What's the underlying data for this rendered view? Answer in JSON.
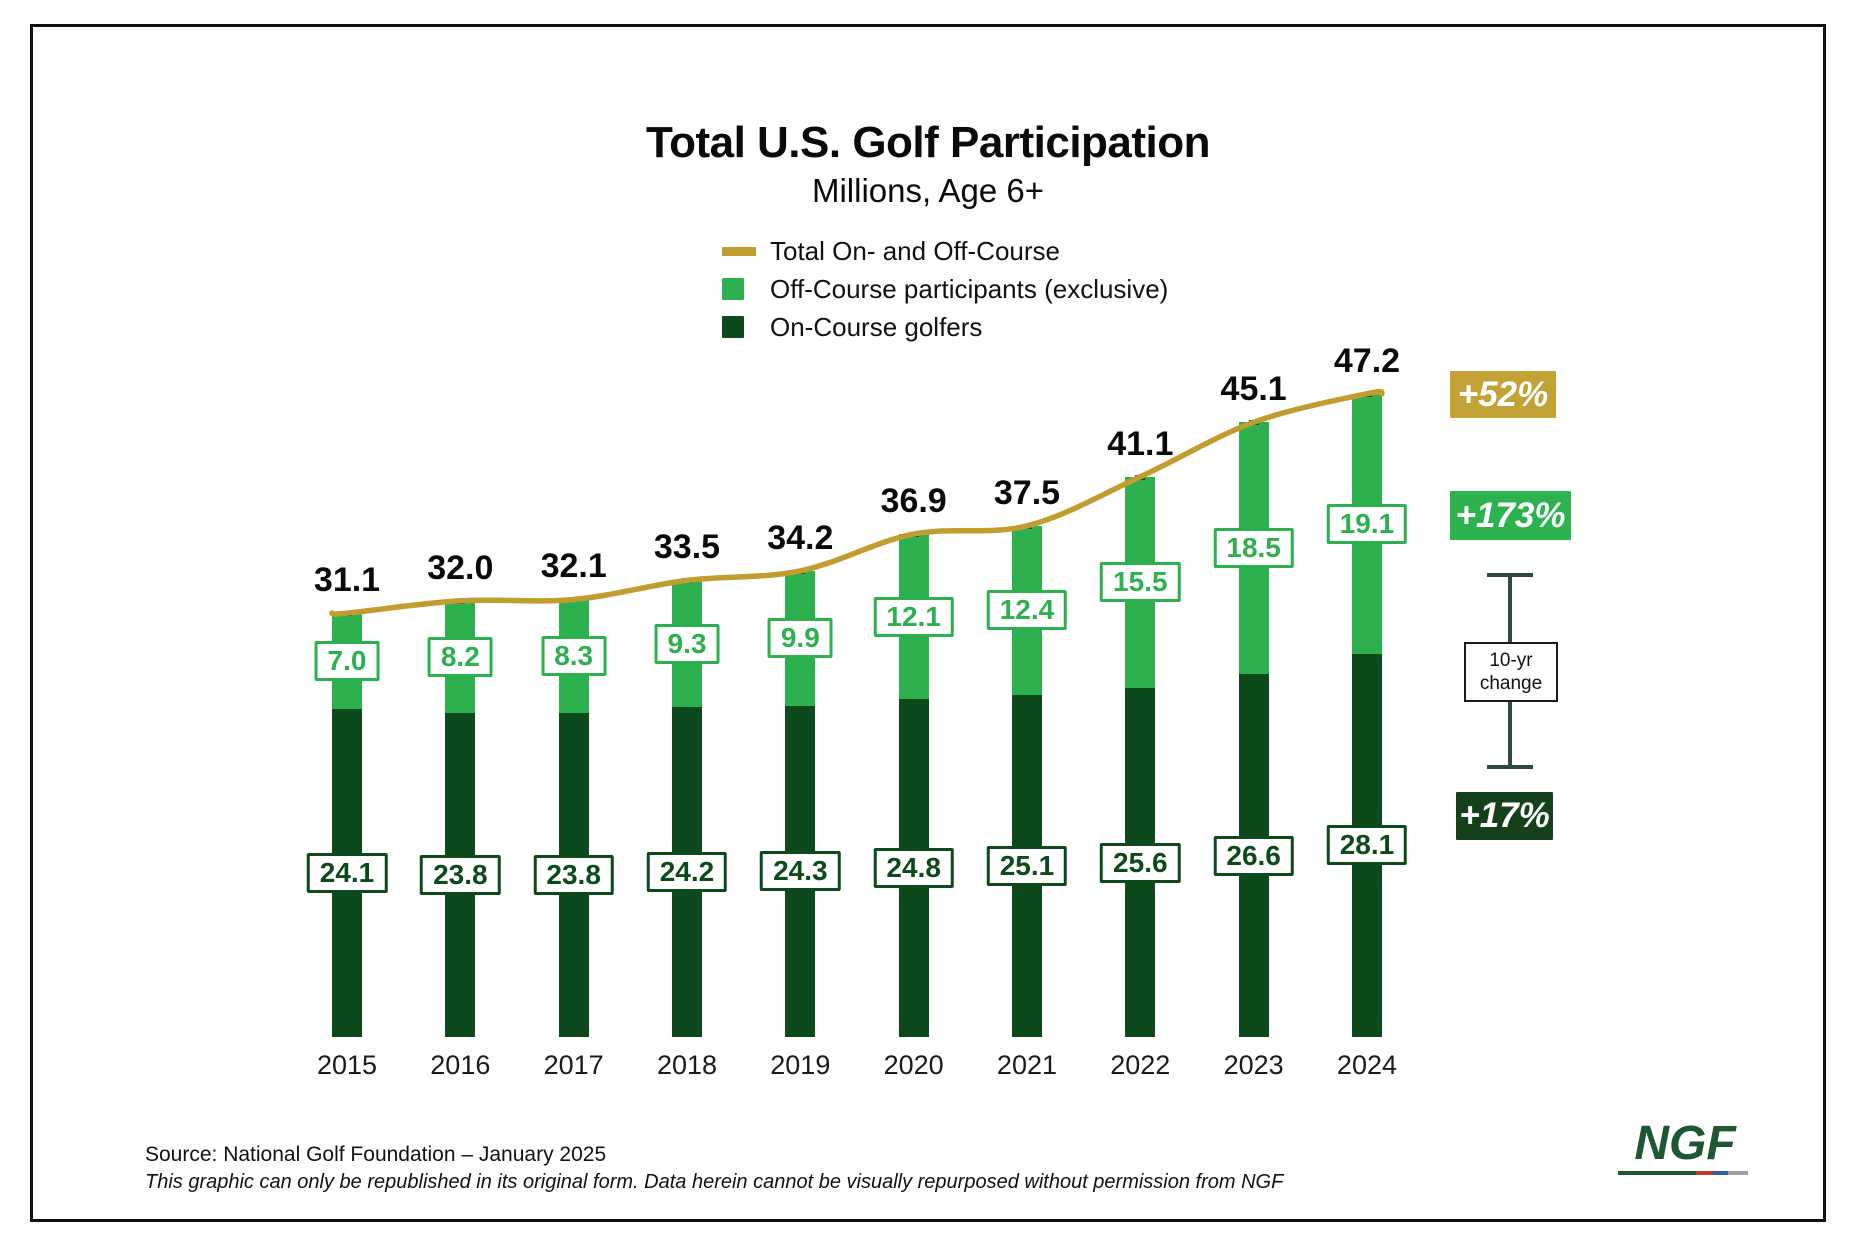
{
  "title": "Total U.S. Golf Participation",
  "subtitle": "Millions, Age 6+",
  "legend": {
    "items": [
      {
        "label": "Total On- and Off-Course",
        "swatch": "line-swatch",
        "color": "#C09D2E"
      },
      {
        "label": "Off-Course participants (exclusive)",
        "swatch": "square-swatch",
        "color": "#2DB04E"
      },
      {
        "label": "On-Course golfers",
        "swatch": "square-swatch",
        "color": "#0C4A1C"
      }
    ]
  },
  "chart_data": {
    "type": "bar",
    "stacked": true,
    "grid": false,
    "legend_position": "top",
    "categories": [
      "2015",
      "2016",
      "2017",
      "2018",
      "2019",
      "2020",
      "2021",
      "2022",
      "2023",
      "2024"
    ],
    "series": [
      {
        "name": "On-Course golfers",
        "color": "#0C4A1C",
        "values": [
          24.1,
          23.8,
          23.8,
          24.2,
          24.3,
          24.8,
          25.1,
          25.6,
          26.6,
          28.1
        ]
      },
      {
        "name": "Off-Course participants (exclusive)",
        "color": "#2DB04E",
        "values": [
          7.0,
          8.2,
          8.3,
          9.3,
          9.9,
          12.1,
          12.4,
          15.5,
          18.5,
          19.1
        ]
      }
    ],
    "line_series": {
      "name": "Total On- and Off-Course",
      "color": "#C09D2E",
      "values": [
        31.1,
        32.0,
        32.1,
        33.5,
        34.2,
        36.9,
        37.5,
        41.1,
        45.1,
        47.2
      ]
    },
    "title": "Total U.S. Golf Participation",
    "xlabel": "",
    "ylabel": "Millions, Age 6+",
    "ylim": [
      0,
      50
    ]
  },
  "annotations": {
    "total_change": "+52%",
    "off_course_change": "+173%",
    "on_course_change": "+17%",
    "bracket_label_line1": "10-yr",
    "bracket_label_line2": "change"
  },
  "colors": {
    "total_line": "#C09D2E",
    "off_course": "#2DB04E",
    "on_course": "#0C4A1C",
    "gold_badge": "#C2A135",
    "green_badge": "#2CB34F",
    "dark_green_badge": "#14401A",
    "bracket": "#2E4A39",
    "bar_tick": "#24402A",
    "logo_green": "#1D5733",
    "logo_underline_segments": [
      "#1D5733",
      "#C0392B",
      "#2B5FA3",
      "#9AA0A6"
    ]
  },
  "footer": {
    "source": "Source: National Golf Foundation – January 2025",
    "disclaimer": "This graphic can only be republished in its original form. Data herein cannot be visually repurposed without permission from NGF"
  },
  "logo": {
    "text": "NGF"
  }
}
